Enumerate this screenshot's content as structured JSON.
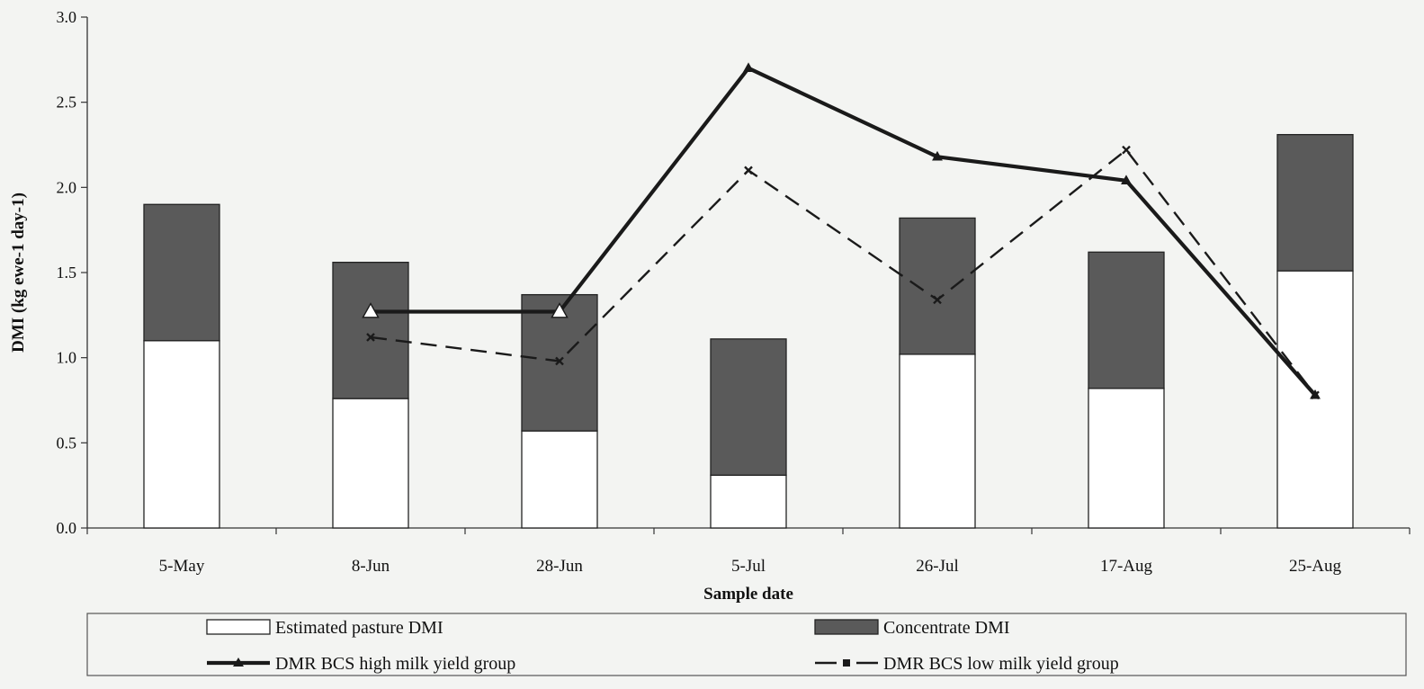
{
  "chart_data": {
    "type": "bar",
    "subtype": "stacked-bar-with-lines",
    "title": "",
    "xlabel": "Sample date",
    "ylabel": "DMI (kg ewe-1 day-1)",
    "ylim": [
      0,
      3.0
    ],
    "yticks": [
      "0.0",
      "0.5",
      "1.0",
      "1.5",
      "2.0",
      "2.5",
      "3.0"
    ],
    "grid": false,
    "legend_position": "bottom",
    "categories": [
      "5-May",
      "8-Jun",
      "28-Jun",
      "5-Jul",
      "26-Jul",
      "17-Aug",
      "25-Aug"
    ],
    "bar_series": [
      {
        "name": "Estimated pasture DMI",
        "values": [
          1.1,
          0.76,
          0.57,
          0.31,
          1.02,
          0.82,
          1.51
        ],
        "color": "#ffffff"
      },
      {
        "name": "Concentrate DMI",
        "values": [
          0.8,
          0.8,
          0.8,
          0.8,
          0.8,
          0.8,
          0.8
        ],
        "color": "#5a5a5a"
      }
    ],
    "line_series": [
      {
        "name": "DMR BCS high milk yield group",
        "values": [
          null,
          1.27,
          1.27,
          2.7,
          2.18,
          2.04,
          0.78
        ],
        "color": "#1a1a1a",
        "style": "solid",
        "marker": "triangle"
      },
      {
        "name": "DMR BCS low milk yield group",
        "values": [
          null,
          1.12,
          0.98,
          2.1,
          1.34,
          2.22,
          0.78
        ],
        "color": "#1a1a1a",
        "style": "dashed",
        "marker": "x"
      }
    ]
  }
}
